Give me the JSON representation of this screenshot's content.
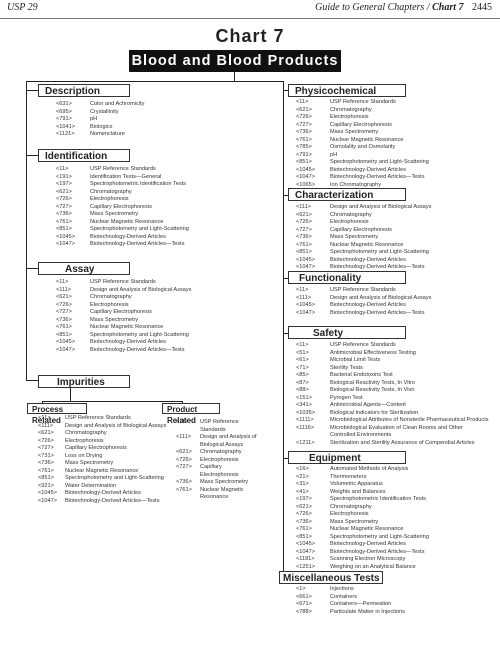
{
  "header": {
    "left": "USP 29",
    "right_title": "Guide to General Chapters",
    "right_chart": "Chart 7",
    "page": "2445"
  },
  "chart_title": "Chart 7",
  "banner": "Blood and Blood Products",
  "sections": {
    "description": {
      "title": "Description",
      "items": [
        {
          "code": "<631>",
          "text": "Color and Achromicity"
        },
        {
          "code": "<695>",
          "text": "Crystallinity"
        },
        {
          "code": "<791>",
          "text": "pH"
        },
        {
          "code": "<1041>",
          "text": "Biologics"
        },
        {
          "code": "<1121>",
          "text": "Nomenclature"
        }
      ]
    },
    "identification": {
      "title": "Identification",
      "items": [
        {
          "code": "<11>",
          "text": "USP Reference Standards"
        },
        {
          "code": "<191>",
          "text": "Identification Tests—General"
        },
        {
          "code": "<197>",
          "text": "Spectrophotometric Identification Tests"
        },
        {
          "code": "<621>",
          "text": "Chromatography"
        },
        {
          "code": "<726>",
          "text": "Electrophoresis"
        },
        {
          "code": "<727>",
          "text": "Capillary Electrophoresis"
        },
        {
          "code": "<736>",
          "text": "Mass Spectrometry"
        },
        {
          "code": "<761>",
          "text": "Nuclear Magnetic Resonance"
        },
        {
          "code": "<851>",
          "text": "Spectrophotometry and Light-Scattering"
        },
        {
          "code": "<1045>",
          "text": "Biotechnology-Derived Articles"
        },
        {
          "code": "<1047>",
          "text": "Biotechnology-Derived Articles—Tests"
        }
      ]
    },
    "assay": {
      "title": "Assay",
      "items": [
        {
          "code": "<11>",
          "text": "USP Reference Standards"
        },
        {
          "code": "<111>",
          "text": "Design and Analysis of Biological Assays"
        },
        {
          "code": "<621>",
          "text": "Chromatography"
        },
        {
          "code": "<726>",
          "text": "Electrophoresis"
        },
        {
          "code": "<727>",
          "text": "Capillary Electrophoresis"
        },
        {
          "code": "<736>",
          "text": "Mass Spectrometry"
        },
        {
          "code": "<761>",
          "text": "Nuclear Magnetic Resonance"
        },
        {
          "code": "<851>",
          "text": "Spectrophotometry and Light-Scattering"
        },
        {
          "code": "<1045>",
          "text": "Biotechnology-Derived Articles"
        },
        {
          "code": "<1047>",
          "text": "Biotechnology-Derived Articles—Tests"
        }
      ]
    },
    "impurities": {
      "title": "Impurities"
    },
    "process_related": {
      "title": "Process  Related",
      "items": [
        {
          "code": "<11>",
          "text": "USP Reference Standards"
        },
        {
          "code": "<111>",
          "text": "Design and Analysis of Biological Assays"
        },
        {
          "code": "<621>",
          "text": "Chromatography"
        },
        {
          "code": "<726>",
          "text": "Electrophoresis"
        },
        {
          "code": "<727>",
          "text": "Capillary Electrophoresis"
        },
        {
          "code": "<731>",
          "text": "Loss on Drying"
        },
        {
          "code": "<736>",
          "text": "Mass Spectrometry"
        },
        {
          "code": "<761>",
          "text": "Nuclear Magnetic Resonance"
        },
        {
          "code": "<851>",
          "text": "Spectrophotometry and Light-Scattering"
        },
        {
          "code": "<921>",
          "text": "Water Determination"
        },
        {
          "code": "<1045>",
          "text": "Biotechnology-Derived Articles"
        },
        {
          "code": "<1047>",
          "text": "Biotechnology-Derived Articles—Tests"
        }
      ]
    },
    "product_related": {
      "title": "Product  Related",
      "items": [
        {
          "code": "<11>",
          "text": "USP Reference Standards"
        },
        {
          "code": "<111>",
          "text": "Design and Analysis of Biological Assays"
        },
        {
          "code": "<621>",
          "text": "Chromatography"
        },
        {
          "code": "<726>",
          "text": "Electrophoresis"
        },
        {
          "code": "<727>",
          "text": "Capillary Electrophoresis"
        },
        {
          "code": "<736>",
          "text": "Mass Spectrometry"
        },
        {
          "code": "<761>",
          "text": "Nuclear Magnetic Resonance"
        }
      ]
    },
    "physicochemical": {
      "title": "Physicochemical",
      "items": [
        {
          "code": "<11>",
          "text": "USP Reference Standards"
        },
        {
          "code": "<621>",
          "text": "Chromatography"
        },
        {
          "code": "<726>",
          "text": "Electrophoresis"
        },
        {
          "code": "<727>",
          "text": "Capillary Electrophoresis"
        },
        {
          "code": "<736>",
          "text": "Mass Spectrometry"
        },
        {
          "code": "<761>",
          "text": "Nuclear Magnetic Resonance"
        },
        {
          "code": "<785>",
          "text": "Osmolality and Osmolarity"
        },
        {
          "code": "<791>",
          "text": "pH"
        },
        {
          "code": "<851>",
          "text": "Spectrophotometry and Light-Scattering"
        },
        {
          "code": "<1045>",
          "text": "Biotechnology-Derived Articles"
        },
        {
          "code": "<1047>",
          "text": "Biotechnology-Derived Articles—Tests"
        },
        {
          "code": "<1065>",
          "text": "Ion Chromatography"
        }
      ]
    },
    "characterization": {
      "title": "Characterization",
      "items": [
        {
          "code": "<111>",
          "text": "Design and Analysis of Biological Assays"
        },
        {
          "code": "<621>",
          "text": "Chromatography"
        },
        {
          "code": "<726>",
          "text": "Electrophoresis"
        },
        {
          "code": "<727>",
          "text": "Capillary Electrophoresis"
        },
        {
          "code": "<736>",
          "text": "Mass Spectrometry"
        },
        {
          "code": "<761>",
          "text": "Nuclear Magnetic Resonance"
        },
        {
          "code": "<851>",
          "text": "Spectrophotometry and Light-Scattering"
        },
        {
          "code": "<1045>",
          "text": "Biotechnology-Derived Articles"
        },
        {
          "code": "<1047>",
          "text": "Biotechnology-Derived Articles—Tests"
        }
      ]
    },
    "functionality": {
      "title": "Functionality",
      "items": [
        {
          "code": "<11>",
          "text": "USP Reference Standards"
        },
        {
          "code": "<111>",
          "text": "Design and Analysis of Biological Assays"
        },
        {
          "code": "<1045>",
          "text": "Biotechnology-Derived Articles"
        },
        {
          "code": "<1047>",
          "text": "Biotechnology-Derived Articles—Tests"
        }
      ]
    },
    "safety": {
      "title": "Safety",
      "items": [
        {
          "code": "<11>",
          "text": "USP Reference Standards"
        },
        {
          "code": "<51>",
          "text": "Antimicrobial Effectiveness Testing"
        },
        {
          "code": "<61>",
          "text": "Microbial Limit Tests"
        },
        {
          "code": "<71>",
          "text": "Sterility Tests"
        },
        {
          "code": "<85>",
          "text": "Bacterial Endotoxins Test"
        },
        {
          "code": "<87>",
          "text": "Biological Reactivity Tests, In Vitro"
        },
        {
          "code": "<88>",
          "text": "Biological Reactivity Tests, In Vivo"
        },
        {
          "code": "<151>",
          "text": "Pyrogen Test"
        },
        {
          "code": "<341>",
          "text": "Antimicrobial Agents—Content"
        },
        {
          "code": "<1035>",
          "text": "Biological Indicators for Sterilization"
        },
        {
          "code": "<1111>",
          "text": "Microbiological Attributes of Nonsterile Pharmaceutical Products"
        },
        {
          "code": "<1116>",
          "text": "Microbiological Evaluation of Clean Rooms and Other"
        },
        {
          "code": "",
          "text": "Controlled Environments"
        },
        {
          "code": "<1211>",
          "text": "Sterilization and Sterility Assurance of Compendial Articles"
        }
      ]
    },
    "equipment": {
      "title": "Equipment",
      "items": [
        {
          "code": "<16>",
          "text": "Automated Methods of Analysis"
        },
        {
          "code": "<21>",
          "text": "Thermometers"
        },
        {
          "code": "<31>",
          "text": "Volumetric Apparatus"
        },
        {
          "code": "<41>",
          "text": "Weights and Balances"
        },
        {
          "code": "<197>",
          "text": "Spectrophotometric Identification Tests"
        },
        {
          "code": "<621>",
          "text": "Chromatography"
        },
        {
          "code": "<726>",
          "text": "Electrophoresis"
        },
        {
          "code": "<736>",
          "text": "Mass Spectrometry"
        },
        {
          "code": "<761>",
          "text": "Nuclear Magnetic Resonance"
        },
        {
          "code": "<851>",
          "text": "Spectrophotometry and Light-Scattering"
        },
        {
          "code": "<1045>",
          "text": "Biotechnology-Derived Articles"
        },
        {
          "code": "<1047>",
          "text": "Biotechnology-Derived Articles—Tests"
        },
        {
          "code": "<1181>",
          "text": "Scanning Electron Microscopy"
        },
        {
          "code": "<1251>",
          "text": "Weighing on an Analytical Balance"
        }
      ]
    },
    "misc": {
      "title": "Miscellaneous Tests",
      "items": [
        {
          "code": "<1>",
          "text": "Injections"
        },
        {
          "code": "<661>",
          "text": "Containers"
        },
        {
          "code": "<671>",
          "text": "Containers—Permeation"
        },
        {
          "code": "<788>",
          "text": "Particulate Matter in Injections"
        }
      ]
    }
  }
}
